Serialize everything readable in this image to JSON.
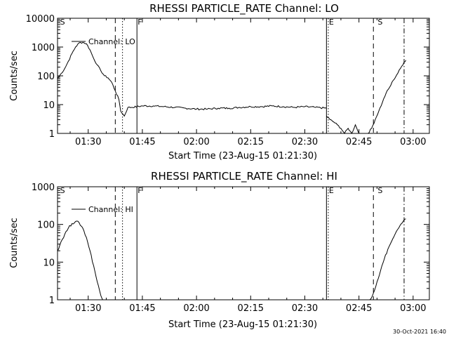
{
  "footer_stamp": "30-Oct-2021 16:40",
  "chart_data": [
    {
      "type": "line",
      "title": "RHESSI PARTICLE_RATE Channel: LO",
      "xlabel": "Start Time (23-Aug-15 01:21:30)",
      "ylabel": "Counts/sec",
      "y_scale": "log",
      "xlim": [
        "01:21:30",
        "03:04:30"
      ],
      "ylim": [
        1,
        10000
      ],
      "x_ticks": [
        "01:30",
        "01:45",
        "02:00",
        "02:15",
        "02:30",
        "02:45",
        "03:00"
      ],
      "y_ticks": [
        "1",
        "10",
        "100",
        "1000",
        "10000"
      ],
      "legend": "top-left",
      "series": [
        {
          "name": "Channel: LO",
          "segments": [
            {
              "x": [
                "01:21:30",
                "01:22:30",
                "01:23:30",
                "01:24:30",
                "01:25:30",
                "01:26:30",
                "01:27:30",
                "01:28:30",
                "01:29:30",
                "01:30:30",
                "01:31:30",
                "01:32:30",
                "01:33:30",
                "01:34:30",
                "01:35:30",
                "01:36:30",
                "01:37:30",
                "01:38:30",
                "01:39:00",
                "01:40:00",
                "01:41:00",
                "01:42:00"
              ],
              "y": [
                80,
                120,
                180,
                320,
                600,
                1000,
                1400,
                1450,
                1300,
                800,
                400,
                240,
                150,
                100,
                85,
                60,
                30,
                15,
                6,
                4,
                8,
                8
              ]
            },
            {
              "x": [
                "01:42:00",
                "01:45:00",
                "01:48:00",
                "01:51:00",
                "01:54:00",
                "01:57:00",
                "02:00:00",
                "02:03:00",
                "02:06:00",
                "02:09:00",
                "02:12:00",
                "02:15:00",
                "02:18:00",
                "02:21:00",
                "02:24:00",
                "02:27:00",
                "02:30:00",
                "02:33:00",
                "02:36:00"
              ],
              "y": [
                8,
                9,
                9,
                8.5,
                8,
                7.5,
                7,
                7,
                7.5,
                7.5,
                8,
                8.5,
                8.5,
                9,
                8.5,
                8,
                8.5,
                8,
                7.5
              ]
            },
            {
              "x": [
                "02:36:00",
                "02:37:00",
                "02:38:00",
                "02:39:00",
                "02:40:00",
                "02:41:00",
                "02:42:00",
                "02:43:00",
                "02:44:00",
                "02:45:00"
              ],
              "y": [
                4,
                3,
                2.5,
                2,
                1.5,
                1,
                1.5,
                1,
                2,
                1
              ]
            },
            {
              "x": [
                "02:47:30",
                "02:48:30",
                "02:49:30",
                "02:50:30",
                "02:51:30",
                "02:52:30",
                "02:53:30",
                "02:54:30",
                "02:55:30",
                "02:56:30",
                "02:57:30",
                "02:58:00"
              ],
              "y": [
                1,
                1.5,
                3,
                6,
                12,
                25,
                40,
                70,
                110,
                180,
                300,
                350
              ]
            }
          ]
        }
      ],
      "vertical_markers": [
        {
          "x": "01:22:00",
          "label": "S",
          "style": "none"
        },
        {
          "x": "01:37:30",
          "label": "",
          "style": "dashed"
        },
        {
          "x": "01:39:30",
          "label": "",
          "style": "dotted"
        },
        {
          "x": "01:43:30",
          "label": "F",
          "style": "solid"
        },
        {
          "x": "02:36:00",
          "label": "",
          "style": "solid"
        },
        {
          "x": "02:36:30",
          "label": "E",
          "style": "dotted"
        },
        {
          "x": "02:49:00",
          "label": "",
          "style": "dashed"
        },
        {
          "x": "02:50:00",
          "label": "S",
          "style": "none"
        },
        {
          "x": "02:57:30",
          "label": "",
          "style": "dashdot"
        }
      ]
    },
    {
      "type": "line",
      "title": "RHESSI PARTICLE_RATE Channel: HI",
      "xlabel": "Start Time (23-Aug-15 01:21:30)",
      "ylabel": "Counts/sec",
      "y_scale": "log",
      "xlim": [
        "01:21:30",
        "03:04:30"
      ],
      "ylim": [
        1,
        1000
      ],
      "x_ticks": [
        "01:30",
        "01:45",
        "02:00",
        "02:15",
        "02:30",
        "02:45",
        "03:00"
      ],
      "y_ticks": [
        "1",
        "10",
        "100",
        "1000"
      ],
      "legend": "top-left",
      "series": [
        {
          "name": "Channel: HI",
          "segments": [
            {
              "x": [
                "01:21:30",
                "01:22:30",
                "01:23:30",
                "01:24:30",
                "01:25:30",
                "01:26:30",
                "01:27:30",
                "01:28:30",
                "01:29:30",
                "01:30:30",
                "01:31:30",
                "01:32:30",
                "01:33:30",
                "01:34:00"
              ],
              "y": [
                20,
                35,
                55,
                80,
                105,
                120,
                110,
                80,
                45,
                20,
                8,
                3,
                1.3,
                1
              ]
            },
            {
              "x": [
                "02:48:00",
                "02:49:00",
                "02:50:00",
                "02:51:00",
                "02:52:00",
                "02:53:00",
                "02:54:00",
                "02:55:00",
                "02:56:00",
                "02:57:00",
                "02:58:00"
              ],
              "y": [
                1,
                1.5,
                3,
                6,
                12,
                22,
                35,
                55,
                80,
                110,
                140
              ]
            }
          ]
        }
      ],
      "vertical_markers": [
        {
          "x": "01:22:00",
          "label": "S",
          "style": "none"
        },
        {
          "x": "01:37:30",
          "label": "",
          "style": "dashed"
        },
        {
          "x": "01:39:30",
          "label": "",
          "style": "dotted"
        },
        {
          "x": "01:43:30",
          "label": "F",
          "style": "solid"
        },
        {
          "x": "02:36:00",
          "label": "",
          "style": "solid"
        },
        {
          "x": "02:36:30",
          "label": "E",
          "style": "dotted"
        },
        {
          "x": "02:49:00",
          "label": "",
          "style": "dashed"
        },
        {
          "x": "02:50:00",
          "label": "S",
          "style": "none"
        },
        {
          "x": "02:57:30",
          "label": "",
          "style": "dashdot"
        }
      ]
    }
  ]
}
